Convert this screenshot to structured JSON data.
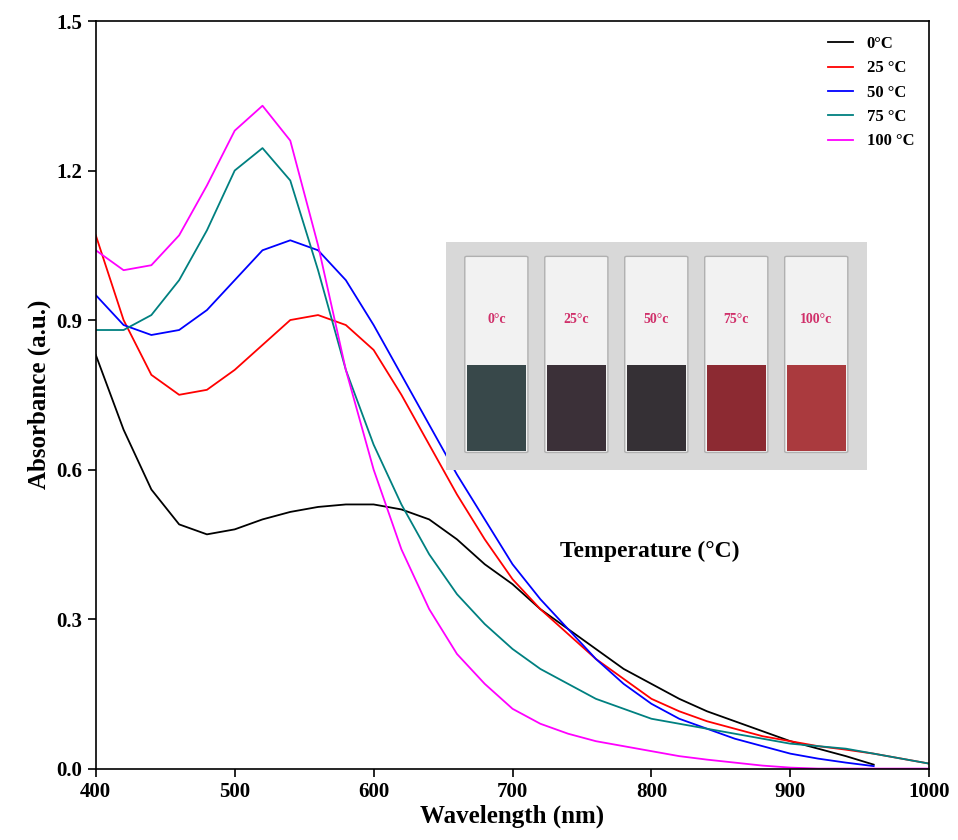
{
  "chart_data": {
    "type": "line",
    "x_label": "Wavelength (nm)",
    "y_label": "Absorbance (a.u.)",
    "x": [
      400,
      420,
      440,
      460,
      480,
      500,
      520,
      540,
      560,
      580,
      600,
      620,
      640,
      660,
      680,
      700,
      720,
      740,
      760,
      780,
      800,
      820,
      840,
      860,
      880,
      900,
      920,
      940,
      960,
      980,
      1000
    ],
    "series": [
      {
        "name": "0°C",
        "color": "#000000",
        "values": [
          0.83,
          0.68,
          0.56,
          0.49,
          0.47,
          0.48,
          0.5,
          0.515,
          0.525,
          0.53,
          0.53,
          0.52,
          0.5,
          0.46,
          0.41,
          0.37,
          0.32,
          0.28,
          0.24,
          0.2,
          0.17,
          0.14,
          0.115,
          0.095,
          0.075,
          0.055,
          0.04,
          0.025,
          0.008,
          null,
          null
        ]
      },
      {
        "name": "25 °C",
        "color": "#ff0000",
        "values": [
          1.07,
          0.9,
          0.79,
          0.75,
          0.76,
          0.8,
          0.85,
          0.9,
          0.91,
          0.89,
          0.84,
          0.75,
          0.65,
          0.55,
          0.46,
          0.38,
          0.32,
          0.27,
          0.22,
          0.18,
          0.14,
          0.115,
          0.095,
          0.08,
          0.065,
          0.055,
          0.045,
          0.038,
          0.03,
          0.02,
          0.01
        ]
      },
      {
        "name": "50 °C",
        "color": "#0000ff",
        "values": [
          0.95,
          0.89,
          0.87,
          0.88,
          0.92,
          0.98,
          1.04,
          1.06,
          1.04,
          0.98,
          0.89,
          0.79,
          0.69,
          0.59,
          0.5,
          0.41,
          0.34,
          0.28,
          0.22,
          0.17,
          0.13,
          0.1,
          0.08,
          0.06,
          0.045,
          0.03,
          0.02,
          0.012,
          0.005,
          null,
          null
        ]
      },
      {
        "name": "75 °C",
        "color": "#008080",
        "values": [
          0.88,
          0.88,
          0.91,
          0.98,
          1.08,
          1.2,
          1.245,
          1.18,
          1.0,
          0.8,
          0.65,
          0.53,
          0.43,
          0.35,
          0.29,
          0.24,
          0.2,
          0.17,
          0.14,
          0.12,
          0.1,
          0.09,
          0.08,
          0.07,
          0.06,
          0.05,
          0.045,
          0.04,
          0.03,
          0.02,
          0.01
        ]
      },
      {
        "name": "100 °C",
        "color": "#ff00ff",
        "values": [
          1.04,
          1.0,
          1.01,
          1.07,
          1.17,
          1.28,
          1.33,
          1.26,
          1.05,
          0.8,
          0.6,
          0.44,
          0.32,
          0.23,
          0.17,
          0.12,
          0.09,
          0.07,
          0.055,
          0.045,
          0.035,
          0.025,
          0.018,
          0.012,
          0.006,
          0.002,
          0.0,
          0.0,
          0.0,
          0.0,
          0.0
        ]
      }
    ],
    "xlim": [
      400,
      1000
    ],
    "ylim": [
      0.0,
      1.5
    ],
    "xticks": [
      400,
      500,
      600,
      700,
      800,
      900,
      1000
    ],
    "yticks": [
      0.0,
      0.3,
      0.6,
      0.9,
      1.2,
      1.5
    ],
    "legend": "upper right",
    "annotations": [
      "Temperature (°C)"
    ],
    "inset_labels": [
      "0°c",
      "25°c",
      "50°c",
      "75°c",
      "100°c"
    ]
  }
}
